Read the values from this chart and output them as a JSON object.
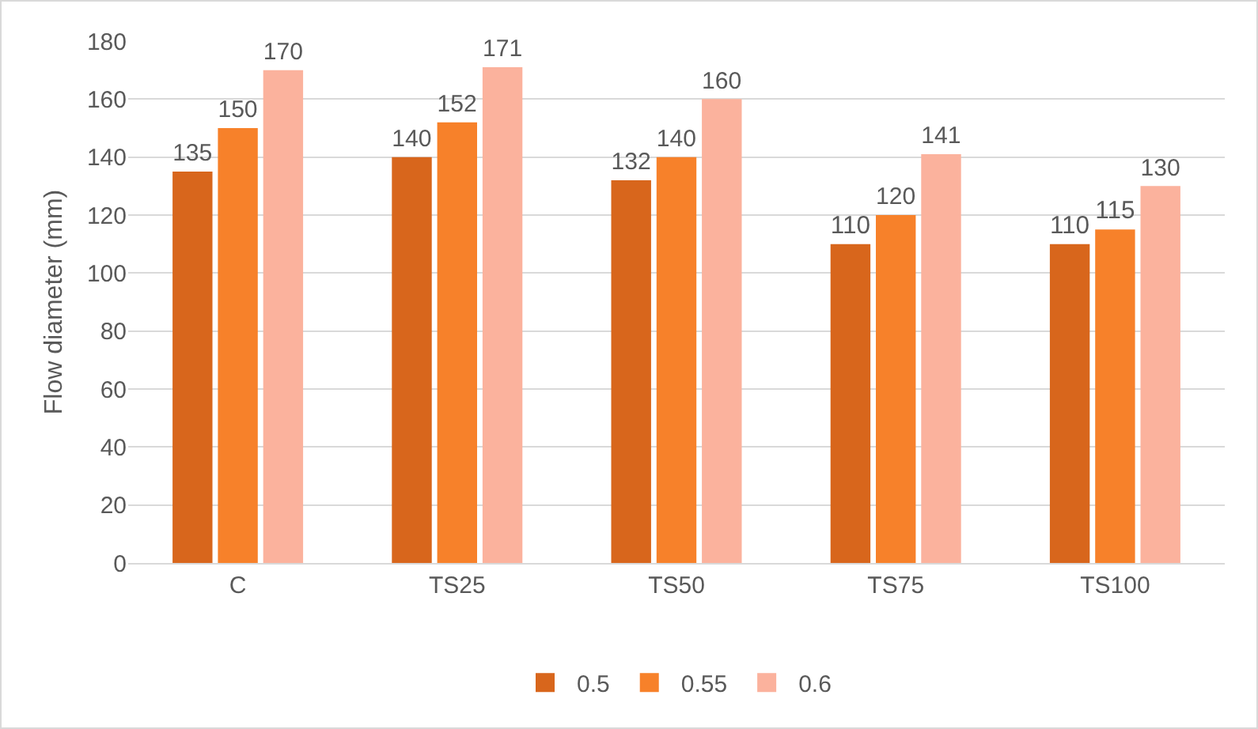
{
  "chart_data": {
    "type": "bar",
    "ylabel": "Flow diameter (mm)",
    "categories": [
      "C",
      "TS25",
      "TS50",
      "TS75",
      "TS100"
    ],
    "series": [
      {
        "name": "0.5",
        "color": "#d8661c",
        "values": [
          135,
          140,
          132,
          110,
          110
        ]
      },
      {
        "name": "0.55",
        "color": "#f7812a",
        "values": [
          150,
          152,
          140,
          120,
          115
        ]
      },
      {
        "name": "0.6",
        "color": "#fbb29d",
        "values": [
          170,
          171,
          160,
          141,
          130
        ]
      }
    ],
    "ylim": [
      0,
      180
    ],
    "yticks": [
      0,
      20,
      40,
      60,
      80,
      100,
      120,
      140,
      160,
      180
    ],
    "grid": "y",
    "legend": "bottom",
    "data_labels": true
  }
}
